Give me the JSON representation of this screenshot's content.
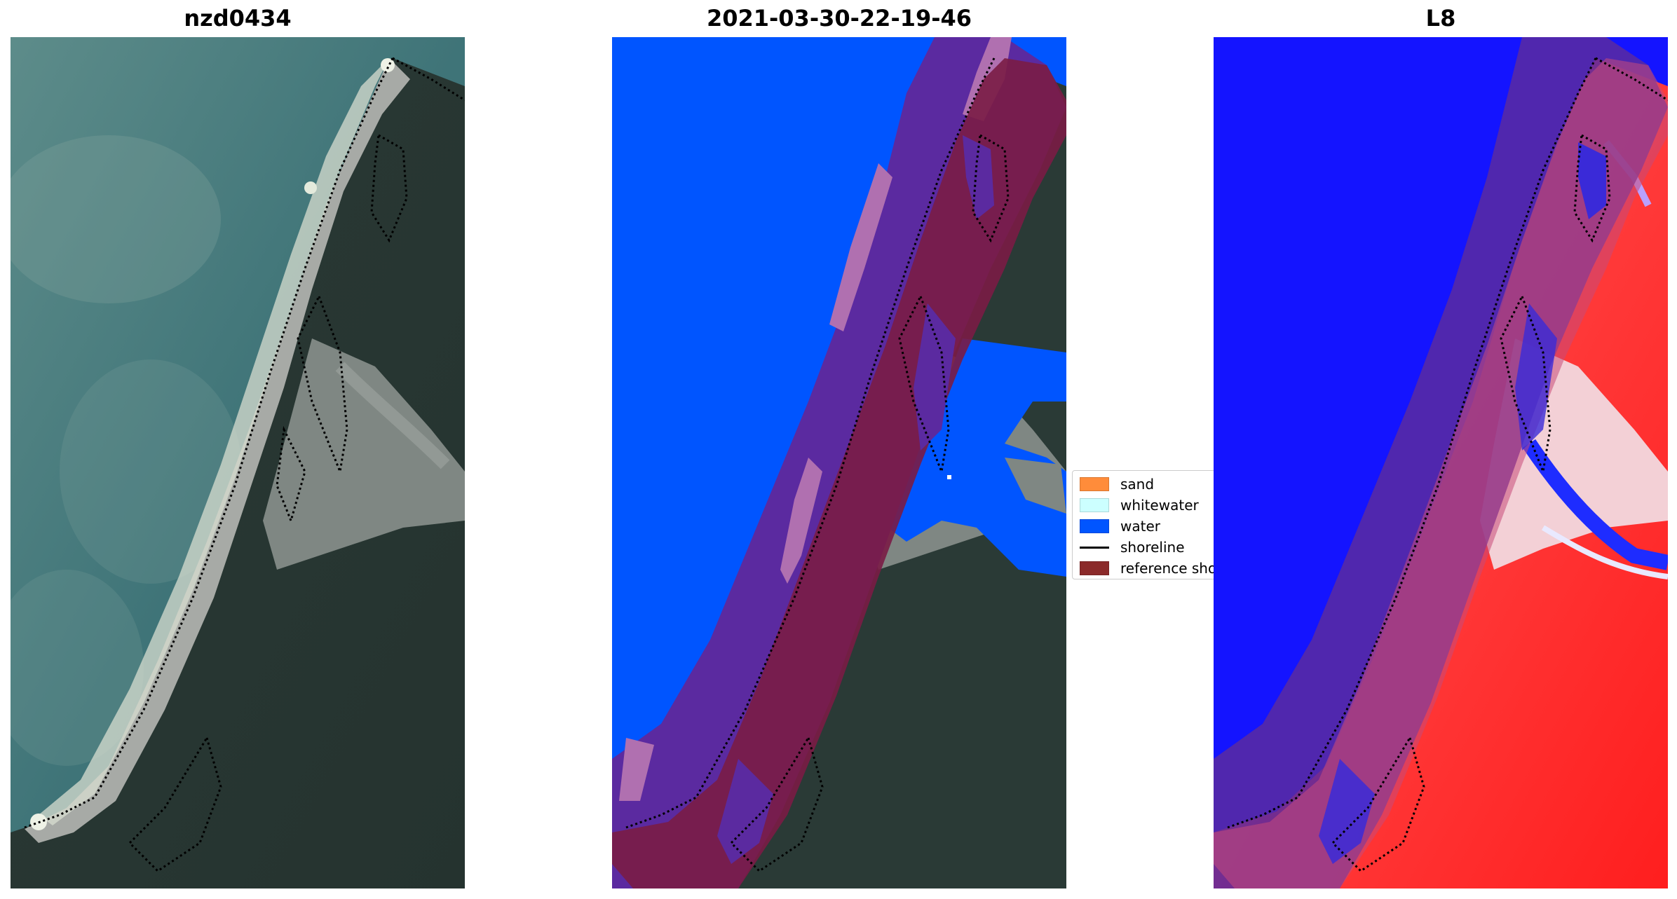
{
  "panels": [
    {
      "title": "nzd0434",
      "kind": "rgb-image"
    },
    {
      "title": "2021-03-30-22-19-46",
      "kind": "classified-overlay"
    },
    {
      "title": "L8",
      "kind": "index-map"
    }
  ],
  "legend": {
    "items": [
      {
        "label": "sand",
        "color": "#ff8c3a",
        "kind": "patch"
      },
      {
        "label": "whitewater",
        "color": "#ccffff",
        "kind": "patch"
      },
      {
        "label": "water",
        "color": "#0055ff",
        "kind": "patch"
      },
      {
        "label": "shoreline",
        "color": "#000000",
        "kind": "line"
      },
      {
        "label": "reference sho",
        "color": "#8b2a2a",
        "kind": "patch"
      }
    ]
  },
  "colors": {
    "sea": "#3f6f73",
    "vegetation": "#2b3b35",
    "sand": "#9a9d98",
    "water_class": "#0055ff",
    "buffer": "#5b2aa0",
    "reference": "#7a1c45",
    "index_water": "#1414ff",
    "index_land": "#ff3b3b"
  }
}
